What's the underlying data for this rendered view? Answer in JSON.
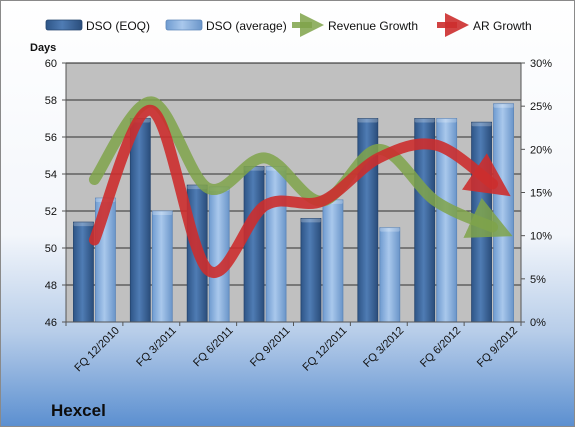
{
  "chart_data": {
    "type": "bar",
    "company": "Hexcel",
    "ylabel": "Days",
    "categories": [
      "FQ 12/2010",
      "FQ 3/2011",
      "FQ 6/2011",
      "FQ 9/2011",
      "FQ 12/2011",
      "FQ 3/2012",
      "FQ 6/2012",
      "FQ 9/2012"
    ],
    "left_axis": {
      "min": 46,
      "max": 60,
      "step": 2,
      "ticks": [
        "46",
        "48",
        "50",
        "52",
        "54",
        "56",
        "58",
        "60"
      ]
    },
    "right_axis": {
      "min": 0,
      "max": 30,
      "step": 5,
      "ticks": [
        "0%",
        "5%",
        "10%",
        "15%",
        "20%",
        "25%",
        "30%"
      ]
    },
    "bar_series": [
      {
        "name": "DSO (EOQ)",
        "axis": "left",
        "color": "#3f6aa0",
        "values": [
          51.4,
          57.0,
          53.4,
          54.4,
          51.6,
          57.0,
          57.0,
          56.8
        ]
      },
      {
        "name": "DSO (average)",
        "axis": "left",
        "color": "#8db4e2",
        "values": [
          52.7,
          52.0,
          53.3,
          54.4,
          52.6,
          51.1,
          57.0,
          57.8
        ]
      }
    ],
    "line_series": [
      {
        "name": "Revenue Growth",
        "axis": "right",
        "color": "#7fa34a",
        "unit": "%",
        "values": [
          16.5,
          25.5,
          15.5,
          19.0,
          14.0,
          20.0,
          14.0,
          11.0
        ]
      },
      {
        "name": "AR Growth",
        "axis": "right",
        "color": "#cc2d2d",
        "unit": "%",
        "values": [
          9.5,
          24.5,
          6.0,
          13.5,
          14.0,
          19.0,
          20.5,
          16.0
        ]
      }
    ],
    "grid": true,
    "legend_position": "top"
  },
  "colors": {
    "plot_background": "#c0c0c0",
    "page_gradient_top": "#ffffff",
    "page_gradient_bottom": "#5b8fd0",
    "gridline": "#000000"
  }
}
